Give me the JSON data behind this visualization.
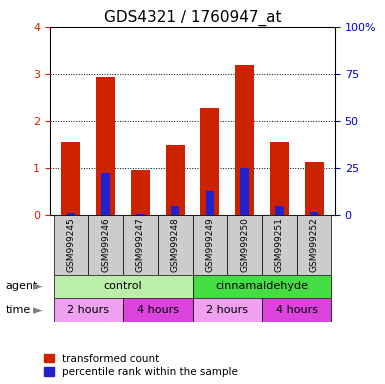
{
  "title": "GDS4321 / 1760947_at",
  "samples": [
    "GSM999245",
    "GSM999246",
    "GSM999247",
    "GSM999248",
    "GSM999249",
    "GSM999250",
    "GSM999251",
    "GSM999252"
  ],
  "red_values": [
    1.55,
    2.93,
    0.95,
    1.48,
    2.28,
    3.2,
    1.55,
    1.12
  ],
  "blue_values": [
    0.05,
    0.9,
    0.02,
    0.2,
    0.52,
    1.0,
    0.2,
    0.07
  ],
  "ylim_left": [
    0,
    4
  ],
  "ylim_right": [
    0,
    100
  ],
  "yticks_left": [
    0,
    1,
    2,
    3,
    4
  ],
  "yticks_right": [
    0,
    25,
    50,
    75,
    100
  ],
  "ytick_labels_right": [
    "0",
    "25",
    "50",
    "75",
    "100%"
  ],
  "bar_color_red": "#cc2200",
  "bar_color_blue": "#2222cc",
  "bar_width": 0.55,
  "legend_red": "transformed count",
  "legend_blue": "percentile rank within the sample",
  "xlabel_agent": "agent",
  "xlabel_time": "time",
  "tick_color_left": "#cc2200",
  "tick_color_right": "#0000cc",
  "agent_data": [
    {
      "label": "control",
      "span": [
        0,
        3
      ],
      "color": "#bbeeaa"
    },
    {
      "label": "cinnamaldehyde",
      "span": [
        4,
        7
      ],
      "color": "#44dd44"
    }
  ],
  "time_data": [
    {
      "label": "2 hours",
      "span": [
        0,
        1
      ],
      "color": "#f0a0f0"
    },
    {
      "label": "4 hours",
      "span": [
        2,
        3
      ],
      "color": "#dd44dd"
    },
    {
      "label": "2 hours",
      "span": [
        4,
        5
      ],
      "color": "#f0a0f0"
    },
    {
      "label": "4 hours",
      "span": [
        6,
        7
      ],
      "color": "#dd44dd"
    }
  ]
}
